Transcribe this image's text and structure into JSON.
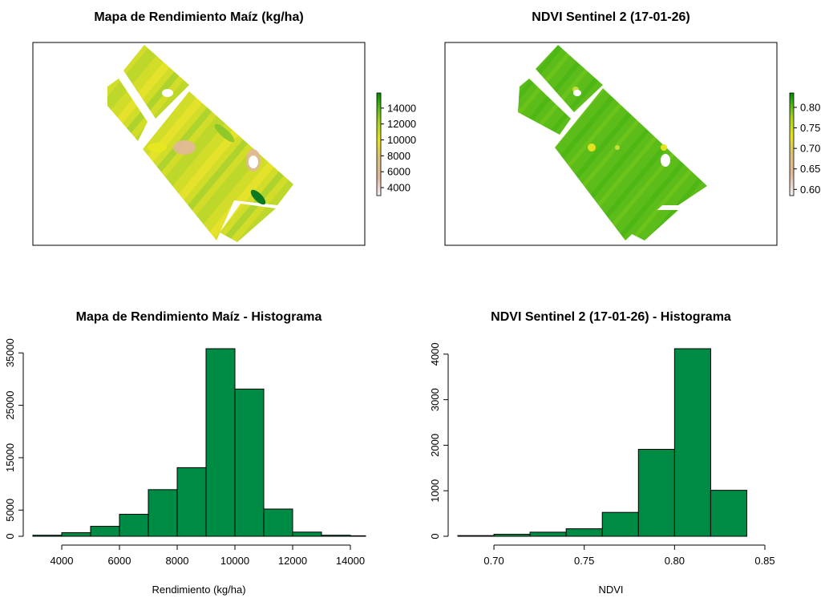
{
  "colors": {
    "bar_fill": "#008b45",
    "ramp": [
      "#f1eef6",
      "#e2b89a",
      "#d9c06e",
      "#e8e51d",
      "#a8d41e",
      "#49b413",
      "#008b00"
    ]
  },
  "chart_data": [
    {
      "type": "heatmap",
      "title": "Mapa de Rendimiento Maíz (kg/ha)",
      "legend": {
        "ticks": [
          "14000",
          "12000",
          "10000",
          "8000",
          "6000",
          "4000"
        ],
        "values": [
          14000,
          12000,
          10000,
          8000,
          6000,
          4000
        ],
        "range": [
          3000,
          15900
        ]
      }
    },
    {
      "type": "heatmap",
      "title": "NDVI Sentinel 2 (17-01-26)",
      "legend": {
        "ticks": [
          "0.80",
          "0.75",
          "0.70",
          "0.65",
          "0.60"
        ],
        "values": [
          0.8,
          0.75,
          0.7,
          0.65,
          0.6
        ],
        "range": [
          0.585,
          0.835
        ]
      }
    },
    {
      "type": "bar",
      "title": "Mapa de Rendimiento Maíz - Histograma",
      "xlabel": "Rendimiento (kg/ha)",
      "ylabel": "",
      "bin_edges": [
        3000,
        4000,
        5000,
        6000,
        7000,
        8000,
        9000,
        10000,
        11000,
        12000,
        13000,
        14000,
        15000
      ],
      "values": [
        200,
        700,
        1900,
        4200,
        8900,
        13100,
        35800,
        28100,
        5200,
        800,
        200,
        100
      ],
      "xticks": [
        4000,
        6000,
        8000,
        10000,
        12000,
        14000
      ],
      "xtick_labels": [
        "4000",
        "6000",
        "8000",
        "10000",
        "12000",
        "14000"
      ],
      "yticks": [
        0,
        5000,
        15000,
        25000,
        35000
      ],
      "ytick_labels": [
        "0",
        "5000",
        "15000",
        "25000",
        "35000"
      ],
      "xlim": [
        3000,
        14500
      ],
      "ylim": [
        0,
        35800
      ]
    },
    {
      "type": "bar",
      "title": "NDVI Sentinel 2 (17-01-26) - Histograma",
      "xlabel": "NDVI",
      "ylabel": "",
      "bin_edges": [
        0.68,
        0.7,
        0.72,
        0.74,
        0.76,
        0.78,
        0.8,
        0.82,
        0.84
      ],
      "values": [
        15,
        45,
        90,
        165,
        525,
        1910,
        4120,
        1010
      ],
      "xticks": [
        0.7,
        0.75,
        0.8,
        0.85
      ],
      "xtick_labels": [
        "0.70",
        "0.75",
        "0.80",
        "0.85"
      ],
      "yticks": [
        0,
        1000,
        2000,
        3000,
        4000
      ],
      "ytick_labels": [
        "0",
        "1000",
        "2000",
        "3000",
        "4000"
      ],
      "xlim": [
        0.68,
        0.85
      ],
      "ylim": [
        0,
        4120
      ]
    }
  ]
}
